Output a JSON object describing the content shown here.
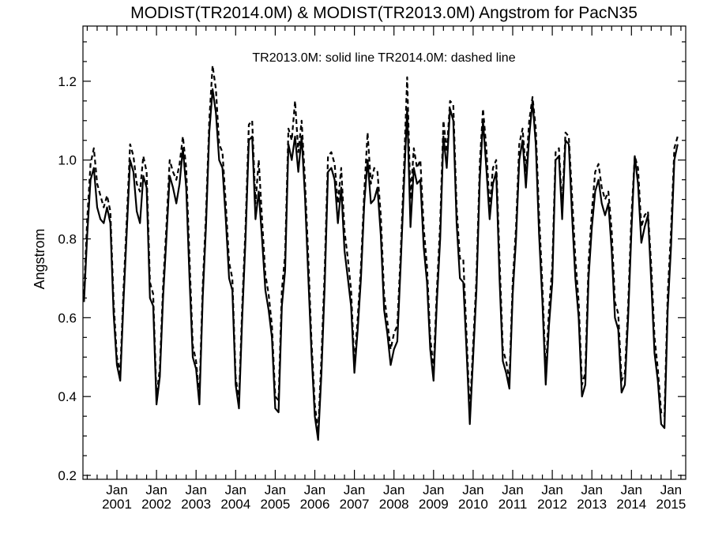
{
  "chart_data": {
    "type": "line",
    "title": "MODIST(TR2014.0M) & MODIST(TR2013.0M)  Angstrom for PacN35",
    "annotation": "TR2013.0M: solid line   TR2014.0M: dashed line",
    "ylabel": "Angstrom",
    "xlabel": "",
    "ylim": [
      0.19,
      1.34
    ],
    "y_ticks": [
      "0.2",
      "0.4",
      "0.6",
      "0.8",
      "1.0",
      "1.2"
    ],
    "x_ticks": [
      {
        "line1": "Jan",
        "line2": "2001"
      },
      {
        "line1": "Jan",
        "line2": "2002"
      },
      {
        "line1": "Jan",
        "line2": "2003"
      },
      {
        "line1": "Jan",
        "line2": "2004"
      },
      {
        "line1": "Jan",
        "line2": "2005"
      },
      {
        "line1": "Jan",
        "line2": "2006"
      },
      {
        "line1": "Jan",
        "line2": "2007"
      },
      {
        "line1": "Jan",
        "line2": "2008"
      },
      {
        "line1": "Jan",
        "line2": "2009"
      },
      {
        "line1": "Jan",
        "line2": "2010"
      },
      {
        "line1": "Jan",
        "line2": "2011"
      },
      {
        "line1": "Jan",
        "line2": "2012"
      },
      {
        "line1": "Jan",
        "line2": "2013"
      },
      {
        "line1": "Jan",
        "line2": "2014"
      },
      {
        "line1": "Jan",
        "line2": "2015"
      }
    ],
    "x_start": "2000-03",
    "grid": false,
    "series": [
      {
        "name": "TR2013.0M",
        "style": "solid",
        "values": [
          0.64,
          0.81,
          0.95,
          0.98,
          0.88,
          0.85,
          0.84,
          0.88,
          0.84,
          0.61,
          0.48,
          0.44,
          0.64,
          0.82,
          1.0,
          0.97,
          0.87,
          0.84,
          0.96,
          0.93,
          0.65,
          0.63,
          0.38,
          0.45,
          0.65,
          0.8,
          0.96,
          0.93,
          0.89,
          0.94,
          1.03,
          0.93,
          0.7,
          0.5,
          0.47,
          0.38,
          0.65,
          0.83,
          1.07,
          1.18,
          1.12,
          1.0,
          0.98,
          0.85,
          0.7,
          0.67,
          0.43,
          0.37,
          0.6,
          0.8,
          1.05,
          1.06,
          0.85,
          0.92,
          0.8,
          0.67,
          0.62,
          0.55,
          0.37,
          0.36,
          0.63,
          0.72,
          1.04,
          1.0,
          1.06,
          0.97,
          1.06,
          0.91,
          0.71,
          0.51,
          0.35,
          0.29,
          0.46,
          0.68,
          0.97,
          0.98,
          0.95,
          0.84,
          0.93,
          0.77,
          0.7,
          0.63,
          0.46,
          0.57,
          0.7,
          0.89,
          1.0,
          0.89,
          0.9,
          0.93,
          0.81,
          0.62,
          0.56,
          0.48,
          0.52,
          0.54,
          0.73,
          0.93,
          1.13,
          0.83,
          0.98,
          0.94,
          0.95,
          0.78,
          0.69,
          0.52,
          0.44,
          0.64,
          0.8,
          1.06,
          0.98,
          1.13,
          1.1,
          0.84,
          0.7,
          0.69,
          0.52,
          0.33,
          0.5,
          0.67,
          0.95,
          1.1,
          0.98,
          0.85,
          0.94,
          0.97,
          0.7,
          0.49,
          0.46,
          0.42,
          0.66,
          0.8,
          1.0,
          1.05,
          0.93,
          1.06,
          1.15,
          1.04,
          0.81,
          0.64,
          0.43,
          0.58,
          0.69,
          1.0,
          1.01,
          0.85,
          1.05,
          1.04,
          0.86,
          0.7,
          0.6,
          0.4,
          0.43,
          0.7,
          0.83,
          0.92,
          0.95,
          0.89,
          0.86,
          0.89,
          0.77,
          0.6,
          0.57,
          0.41,
          0.43,
          0.6,
          0.82,
          1.01,
          0.94,
          0.79,
          0.83,
          0.86,
          0.69,
          0.51,
          0.44,
          0.33,
          0.32,
          0.62,
          0.78,
          1.0,
          1.04
        ]
      },
      {
        "name": "TR2014.0M",
        "style": "dashed",
        "values": [
          0.66,
          0.85,
          0.99,
          1.03,
          0.94,
          0.91,
          0.88,
          0.91,
          0.87,
          0.64,
          0.5,
          0.46,
          0.67,
          0.85,
          1.04,
          1.01,
          0.94,
          0.92,
          1.01,
          0.97,
          0.69,
          0.66,
          0.4,
          0.47,
          0.68,
          0.83,
          1.0,
          0.97,
          0.95,
          0.99,
          1.06,
          0.98,
          0.75,
          0.53,
          0.49,
          0.4,
          0.68,
          0.86,
          1.1,
          1.24,
          1.18,
          1.04,
          1.02,
          0.89,
          0.74,
          0.7,
          0.45,
          0.39,
          0.63,
          0.83,
          1.09,
          1.1,
          0.89,
          1.0,
          0.85,
          0.71,
          0.66,
          0.58,
          0.4,
          0.39,
          0.67,
          0.76,
          1.08,
          1.05,
          1.15,
          1.02,
          1.1,
          0.95,
          0.76,
          0.54,
          0.38,
          0.31,
          0.5,
          0.72,
          1.01,
          1.02,
          0.99,
          0.89,
          0.98,
          0.82,
          0.75,
          0.67,
          0.48,
          0.6,
          0.73,
          0.92,
          1.07,
          0.94,
          0.98,
          0.97,
          0.86,
          0.66,
          0.59,
          0.52,
          0.56,
          0.58,
          0.76,
          0.97,
          1.21,
          0.9,
          1.03,
          0.98,
          1.0,
          0.83,
          0.73,
          0.55,
          0.47,
          0.67,
          0.84,
          1.1,
          1.02,
          1.15,
          1.14,
          0.88,
          0.75,
          0.75,
          0.56,
          0.36,
          0.53,
          0.7,
          0.99,
          1.13,
          1.03,
          0.88,
          0.98,
          1.0,
          0.75,
          0.52,
          0.49,
          0.44,
          0.69,
          0.83,
          1.04,
          1.08,
          0.97,
          1.1,
          1.16,
          1.08,
          0.86,
          0.68,
          0.46,
          0.62,
          0.73,
          1.02,
          1.03,
          0.88,
          1.07,
          1.06,
          0.91,
          0.75,
          0.64,
          0.43,
          0.46,
          0.74,
          0.87,
          0.97,
          0.99,
          0.93,
          0.9,
          0.92,
          0.82,
          0.64,
          0.61,
          0.44,
          0.46,
          0.63,
          0.86,
          1.01,
          0.98,
          0.83,
          0.86,
          0.87,
          0.73,
          0.55,
          0.47,
          0.36,
          0.35,
          0.66,
          0.82,
          1.03,
          1.06
        ]
      }
    ]
  }
}
